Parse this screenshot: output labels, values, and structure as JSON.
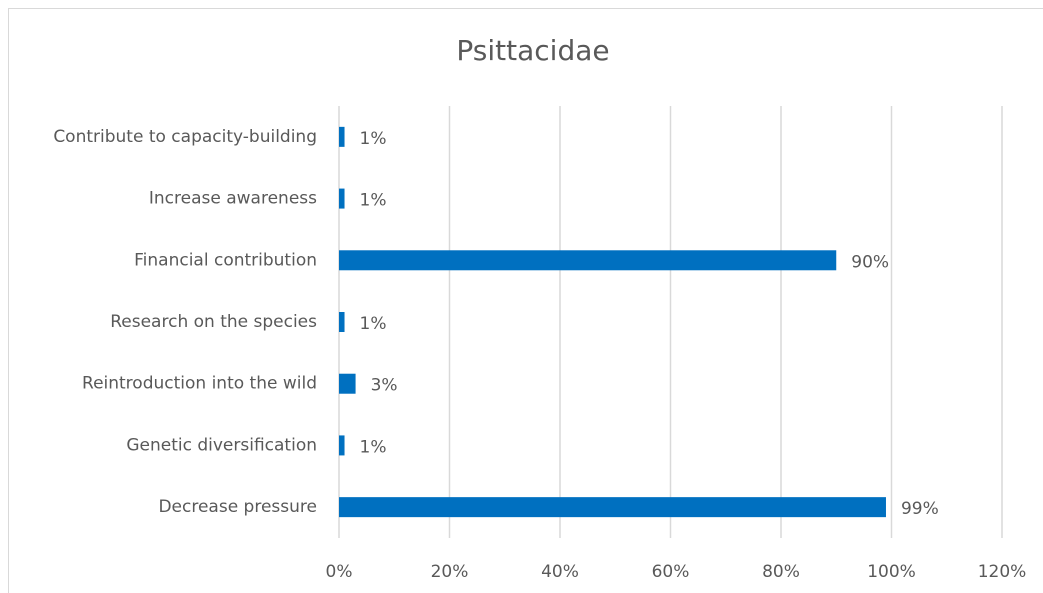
{
  "chart_data": {
    "type": "hbar",
    "title": "Psittacidae",
    "categories": [
      "Contribute to capacity-building",
      "Increase awareness",
      "Financial contribution",
      "Research on the species",
      "Reintroduction into the wild",
      "Genetic diversification",
      "Decrease pressure"
    ],
    "values": [
      1,
      1,
      90,
      1,
      3,
      1,
      99
    ],
    "value_labels": [
      "1%",
      "1%",
      "90%",
      "1%",
      "3%",
      "1%",
      "99%"
    ],
    "color": "#0070c0",
    "xlim": [
      0,
      120
    ],
    "xticks": [
      {
        "value": 0,
        "label": "0%"
      },
      {
        "value": 20,
        "label": "20%"
      },
      {
        "value": 40,
        "label": "40%"
      },
      {
        "value": 60,
        "label": "60%"
      },
      {
        "value": 80,
        "label": "80%"
      },
      {
        "value": 100,
        "label": "100%"
      },
      {
        "value": 120,
        "label": "120%"
      }
    ],
    "grid": true
  }
}
